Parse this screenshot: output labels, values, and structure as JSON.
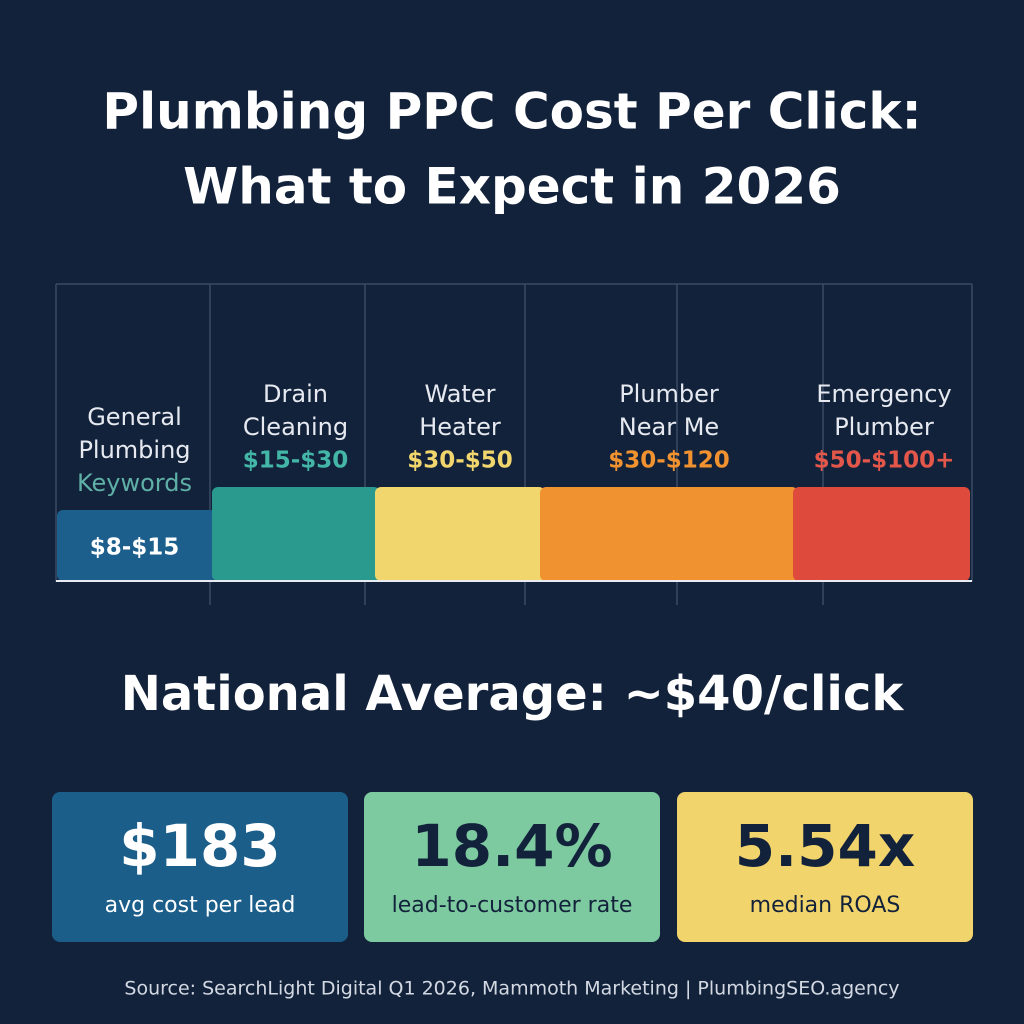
{
  "header": {
    "title_lines": [
      "Plumbing PPC Cost Per Click:",
      "What to Expect in 2026"
    ]
  },
  "segments": [
    {
      "label_lines": [
        "General",
        "Plumbing",
        "Keywords"
      ],
      "range": "$8-$15"
    },
    {
      "label_lines": [
        "Drain",
        "Cleaning"
      ],
      "range": "$15-$30"
    },
    {
      "label_lines": [
        "Water",
        "Heater"
      ],
      "range": "$30-$50"
    },
    {
      "label_lines": [
        "Plumber",
        "Near Me"
      ],
      "range": "$30-$120"
    },
    {
      "label_lines": [
        "Emergency",
        "Plumber"
      ],
      "range": "$50-$100+"
    }
  ],
  "national_average": "National Average: ~$40/click",
  "stats": [
    {
      "value": "$183",
      "label": "avg cost per lead"
    },
    {
      "value": "18.4%",
      "label": "lead-to-customer rate"
    },
    {
      "value": "5.54x",
      "label": "median ROAS"
    }
  ],
  "source": "Source: SearchLight Digital Q1 2026, Mammoth Marketing | PlumbingSEO.agency"
}
